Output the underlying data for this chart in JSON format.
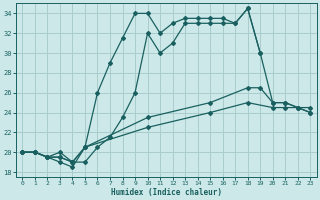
{
  "xlabel": "Humidex (Indice chaleur)",
  "xlim": [
    -0.5,
    23.5
  ],
  "ylim": [
    17.5,
    35.0
  ],
  "yticks": [
    18,
    20,
    22,
    24,
    26,
    28,
    30,
    32,
    34
  ],
  "xticks": [
    0,
    1,
    2,
    3,
    4,
    5,
    6,
    7,
    8,
    9,
    10,
    11,
    12,
    13,
    14,
    15,
    16,
    17,
    18,
    19,
    20,
    21,
    22,
    23
  ],
  "bg_color": "#cce8e8",
  "grid_color": "#aacccc",
  "line_color": "#1a6060",
  "line1_x": [
    0,
    1,
    2,
    3,
    4,
    5,
    6,
    7,
    8,
    9,
    10,
    11,
    12,
    13,
    14,
    15,
    16,
    17,
    18,
    19,
    20,
    21,
    22,
    23
  ],
  "line1_y": [
    20,
    20,
    19.5,
    20,
    19,
    19,
    20.5,
    21.5,
    23.5,
    26,
    32,
    30,
    31,
    33,
    33,
    33,
    33,
    33,
    34.5,
    30,
    25,
    25,
    24.5,
    24
  ],
  "line2_x": [
    0,
    1,
    2,
    3,
    4,
    5,
    6,
    7,
    8,
    9,
    10,
    11,
    12,
    13,
    14,
    15,
    16,
    17,
    18,
    19
  ],
  "line2_y": [
    20,
    20,
    19.5,
    19,
    18.5,
    20.5,
    26,
    29,
    31.5,
    34,
    34,
    32,
    33,
    33.5,
    33.5,
    33.5,
    33.5,
    33,
    34.5,
    30
  ],
  "line3_x": [
    0,
    1,
    2,
    3,
    4,
    5,
    10,
    15,
    18,
    19,
    20,
    21,
    22,
    23
  ],
  "line3_y": [
    20,
    20,
    19.5,
    19.5,
    19,
    20.5,
    23.5,
    25,
    26.5,
    26.5,
    25,
    25,
    24.5,
    24.5
  ],
  "line4_x": [
    0,
    1,
    2,
    3,
    4,
    5,
    10,
    15,
    18,
    20,
    21,
    22,
    23
  ],
  "line4_y": [
    20,
    20,
    19.5,
    19.5,
    19,
    20.5,
    22.5,
    24,
    25,
    24.5,
    24.5,
    24.5,
    24
  ]
}
